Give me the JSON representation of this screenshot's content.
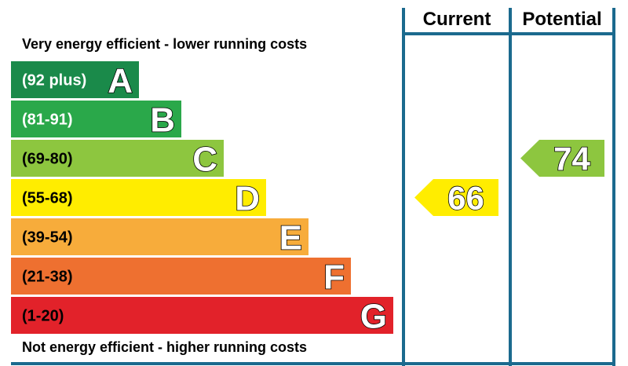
{
  "chart_data": {
    "type": "bar",
    "top_caption": "Very energy efficient - lower running costs",
    "bottom_caption": "Not energy efficient - higher running costs",
    "bands": [
      {
        "letter": "A",
        "range": "(92 plus)",
        "color": "#1a8a4a",
        "text_color": "#ffffff"
      },
      {
        "letter": "B",
        "range": "(81-91)",
        "color": "#2aa84a",
        "text_color": "#ffffff"
      },
      {
        "letter": "C",
        "range": "(69-80)",
        "color": "#8dc63f",
        "text_color": "#000000"
      },
      {
        "letter": "D",
        "range": "(55-68)",
        "color": "#ffed00",
        "text_color": "#000000"
      },
      {
        "letter": "E",
        "range": "(39-54)",
        "color": "#f7ac3b",
        "text_color": "#000000"
      },
      {
        "letter": "F",
        "range": "(21-38)",
        "color": "#ee7030",
        "text_color": "#000000"
      },
      {
        "letter": "G",
        "range": "(1-20)",
        "color": "#e2222a",
        "text_color": "#000000"
      }
    ],
    "columns": {
      "current": "Current",
      "potential": "Potential"
    },
    "ratings": {
      "current": {
        "value": 66,
        "band": "D",
        "color": "#ffed00"
      },
      "potential": {
        "value": 74,
        "band": "C",
        "color": "#8dc63f"
      }
    },
    "frame_color": "#1b6a8e"
  }
}
